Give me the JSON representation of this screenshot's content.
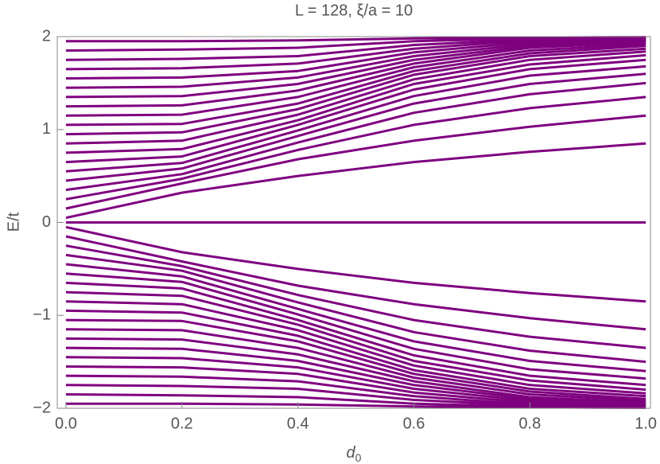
{
  "chart_data": {
    "type": "line",
    "title": "L = 128, ξ/a = 10",
    "x_label": "d",
    "x_label_sub": "0",
    "y_label": "E/t",
    "color": "#7f007f",
    "x": [
      0,
      0.2,
      0.4,
      0.6,
      0.8,
      1.0
    ],
    "xlim": [
      -0.015,
      1.008
    ],
    "ylim": [
      -2,
      2
    ],
    "xticks": [
      {
        "value": 0,
        "label": "0.0"
      },
      {
        "value": 0.2,
        "label": "0.2"
      },
      {
        "value": 0.4,
        "label": "0.4"
      },
      {
        "value": 0.6,
        "label": "0.6"
      },
      {
        "value": 0.8,
        "label": "0.8"
      },
      {
        "value": 1.0,
        "label": "1.0"
      }
    ],
    "yticks": [
      {
        "value": -2,
        "label": "−2"
      },
      {
        "value": -1,
        "label": "−1"
      },
      0,
      1,
      2
    ],
    "series": [
      {
        "values": [
          0,
          0,
          0,
          0,
          0,
          0
        ]
      },
      {
        "values": [
          0.05,
          0.32,
          0.5,
          0.65,
          0.76,
          0.85
        ]
      },
      {
        "values": [
          0.15,
          0.42,
          0.68,
          0.88,
          1.03,
          1.15
        ]
      },
      {
        "values": [
          0.25,
          0.47,
          0.78,
          1.05,
          1.23,
          1.35
        ]
      },
      {
        "values": [
          0.35,
          0.52,
          0.86,
          1.18,
          1.38,
          1.5
        ]
      },
      {
        "values": [
          0.45,
          0.58,
          0.93,
          1.28,
          1.49,
          1.6
        ]
      },
      {
        "values": [
          0.55,
          0.64,
          0.99,
          1.36,
          1.58,
          1.68
        ]
      },
      {
        "values": [
          0.65,
          0.71,
          1.05,
          1.43,
          1.65,
          1.75
        ]
      },
      {
        "values": [
          0.75,
          0.79,
          1.1,
          1.49,
          1.7,
          1.8
        ]
      },
      {
        "values": [
          0.85,
          0.88,
          1.16,
          1.54,
          1.75,
          1.84
        ]
      },
      {
        "values": [
          0.95,
          0.97,
          1.22,
          1.59,
          1.79,
          1.87
        ]
      },
      {
        "values": [
          1.05,
          1.06,
          1.28,
          1.63,
          1.82,
          1.9
        ]
      },
      {
        "values": [
          1.15,
          1.16,
          1.35,
          1.67,
          1.85,
          1.92
        ]
      },
      {
        "values": [
          1.25,
          1.26,
          1.42,
          1.71,
          1.88,
          1.94
        ]
      },
      {
        "values": [
          1.35,
          1.36,
          1.49,
          1.75,
          1.9,
          1.95
        ]
      },
      {
        "values": [
          1.45,
          1.46,
          1.56,
          1.79,
          1.92,
          1.96
        ]
      },
      {
        "values": [
          1.55,
          1.56,
          1.63,
          1.83,
          1.94,
          1.97
        ]
      },
      {
        "values": [
          1.65,
          1.66,
          1.71,
          1.87,
          1.96,
          1.98
        ]
      },
      {
        "values": [
          1.75,
          1.76,
          1.79,
          1.91,
          1.97,
          1.985
        ]
      },
      {
        "values": [
          1.85,
          1.86,
          1.88,
          1.95,
          1.98,
          1.99
        ]
      },
      {
        "values": [
          1.95,
          1.95,
          1.96,
          1.98,
          1.99,
          1.995
        ]
      },
      {
        "values": [
          -0.05,
          -0.32,
          -0.5,
          -0.65,
          -0.76,
          -0.85
        ]
      },
      {
        "values": [
          -0.15,
          -0.42,
          -0.68,
          -0.88,
          -1.03,
          -1.15
        ]
      },
      {
        "values": [
          -0.25,
          -0.47,
          -0.78,
          -1.05,
          -1.23,
          -1.35
        ]
      },
      {
        "values": [
          -0.35,
          -0.52,
          -0.86,
          -1.18,
          -1.38,
          -1.5
        ]
      },
      {
        "values": [
          -0.45,
          -0.58,
          -0.93,
          -1.28,
          -1.49,
          -1.6
        ]
      },
      {
        "values": [
          -0.55,
          -0.64,
          -0.99,
          -1.36,
          -1.58,
          -1.68
        ]
      },
      {
        "values": [
          -0.65,
          -0.71,
          -1.05,
          -1.43,
          -1.65,
          -1.75
        ]
      },
      {
        "values": [
          -0.75,
          -0.79,
          -1.1,
          -1.49,
          -1.7,
          -1.8
        ]
      },
      {
        "values": [
          -0.85,
          -0.88,
          -1.16,
          -1.54,
          -1.75,
          -1.84
        ]
      },
      {
        "values": [
          -0.95,
          -0.97,
          -1.22,
          -1.59,
          -1.79,
          -1.87
        ]
      },
      {
        "values": [
          -1.05,
          -1.06,
          -1.28,
          -1.63,
          -1.82,
          -1.9
        ]
      },
      {
        "values": [
          -1.15,
          -1.16,
          -1.35,
          -1.67,
          -1.85,
          -1.92
        ]
      },
      {
        "values": [
          -1.25,
          -1.26,
          -1.42,
          -1.71,
          -1.88,
          -1.94
        ]
      },
      {
        "values": [
          -1.35,
          -1.36,
          -1.49,
          -1.75,
          -1.9,
          -1.95
        ]
      },
      {
        "values": [
          -1.45,
          -1.46,
          -1.56,
          -1.79,
          -1.92,
          -1.96
        ]
      },
      {
        "values": [
          -1.55,
          -1.56,
          -1.63,
          -1.83,
          -1.94,
          -1.97
        ]
      },
      {
        "values": [
          -1.65,
          -1.66,
          -1.71,
          -1.87,
          -1.96,
          -1.98
        ]
      },
      {
        "values": [
          -1.75,
          -1.76,
          -1.79,
          -1.91,
          -1.97,
          -1.985
        ]
      },
      {
        "values": [
          -1.85,
          -1.86,
          -1.88,
          -1.95,
          -1.98,
          -1.99
        ]
      },
      {
        "values": [
          -1.95,
          -1.95,
          -1.96,
          -1.98,
          -1.99,
          -1.995
        ]
      }
    ]
  }
}
